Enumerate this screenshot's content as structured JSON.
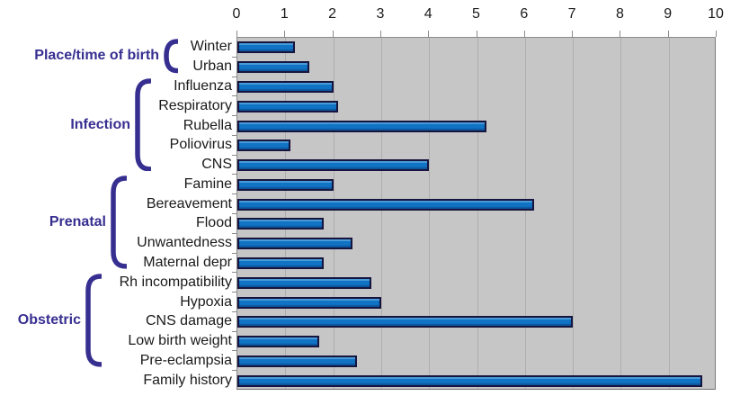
{
  "chart_data": {
    "type": "bar",
    "orientation": "horizontal",
    "title": "",
    "xlabel": "",
    "ylabel": "",
    "x_axis": {
      "position": "top",
      "min": 0,
      "max": 10,
      "ticks": [
        0,
        1,
        2,
        3,
        4,
        5,
        6,
        7,
        8,
        9,
        10
      ],
      "gridlines": true
    },
    "groups": [
      {
        "label": "Place/time of birth",
        "items": [
          {
            "label": "Winter",
            "value": 1.2
          },
          {
            "label": "Urban",
            "value": 1.5
          }
        ]
      },
      {
        "label": "Infection",
        "items": [
          {
            "label": "Influenza",
            "value": 2.0
          },
          {
            "label": "Respiratory",
            "value": 2.1
          },
          {
            "label": "Rubella",
            "value": 5.2
          },
          {
            "label": "Poliovirus",
            "value": 1.1
          },
          {
            "label": "CNS",
            "value": 4.0
          }
        ]
      },
      {
        "label": "Prenatal",
        "items": [
          {
            "label": "Famine",
            "value": 2.0
          },
          {
            "label": "Bereavement",
            "value": 6.2
          },
          {
            "label": "Flood",
            "value": 1.8
          },
          {
            "label": "Unwantedness",
            "value": 2.4
          },
          {
            "label": "Maternal depr",
            "value": 1.8
          }
        ]
      },
      {
        "label": "Obstetric",
        "items": [
          {
            "label": "Rh incompatibility",
            "value": 2.8
          },
          {
            "label": "Hypoxia",
            "value": 3.0
          },
          {
            "label": "CNS damage",
            "value": 7.0
          },
          {
            "label": "Low birth weight",
            "value": 1.7
          },
          {
            "label": "Pre-eclampsia",
            "value": 2.5
          }
        ]
      },
      {
        "label": "",
        "items": [
          {
            "label": "Family history",
            "value": 9.7
          }
        ]
      }
    ],
    "colors": {
      "bar_fill": "#1173c4",
      "bar_border": "#15153f",
      "plot_background": "#c6c6c6",
      "gridline": "#aeaeae",
      "category_label": "#372f90",
      "brace": "#372f90",
      "row_label": "#1a1a1a",
      "axis_label": "#1a1a1a",
      "figure_background": "#ffffff"
    },
    "legend": null
  }
}
